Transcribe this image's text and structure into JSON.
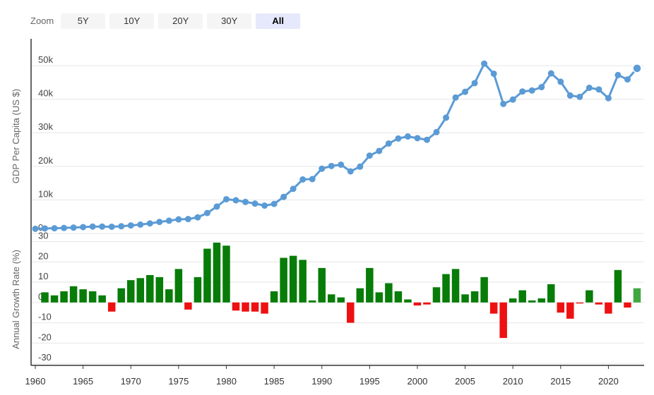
{
  "zoom": {
    "label": "Zoom",
    "buttons": [
      {
        "label": "5Y",
        "active": false
      },
      {
        "label": "10Y",
        "active": false
      },
      {
        "label": "20Y",
        "active": false
      },
      {
        "label": "30Y",
        "active": false
      },
      {
        "label": "All",
        "active": true
      }
    ]
  },
  "chart_data": [
    {
      "type": "line",
      "ylabel": "GDP Per Capita (US $)",
      "ylim": [
        0,
        58000
      ],
      "y_ticks": [
        0,
        10000,
        20000,
        30000,
        40000,
        50000
      ],
      "y_tick_labels": [
        "0",
        "10k",
        "20k",
        "30k",
        "40k",
        "50k"
      ],
      "grid": true,
      "color": "#5b9bd5",
      "x": [
        1960,
        1961,
        1962,
        1963,
        1964,
        1965,
        1966,
        1967,
        1968,
        1969,
        1970,
        1971,
        1972,
        1973,
        1974,
        1975,
        1976,
        1977,
        1978,
        1979,
        1980,
        1981,
        1982,
        1983,
        1984,
        1985,
        1986,
        1987,
        1988,
        1989,
        1990,
        1991,
        1992,
        1993,
        1994,
        1995,
        1996,
        1997,
        1998,
        1999,
        2000,
        2001,
        2002,
        2003,
        2004,
        2005,
        2006,
        2007,
        2008,
        2009,
        2010,
        2011,
        2012,
        2013,
        2014,
        2015,
        2016,
        2017,
        2018,
        2019,
        2020,
        2021,
        2022,
        2023
      ],
      "values": [
        1400,
        1500,
        1550,
        1650,
        1750,
        1900,
        2050,
        2050,
        2000,
        2150,
        2400,
        2650,
        3000,
        3450,
        3800,
        4200,
        4300,
        4800,
        6100,
        8000,
        10200,
        9900,
        9400,
        8900,
        8300,
        8800,
        10900,
        13300,
        16100,
        16200,
        19300,
        20100,
        20500,
        18500,
        19900,
        23200,
        24600,
        26800,
        28300,
        28900,
        28400,
        27900,
        30200,
        34500,
        40500,
        42200,
        44800,
        50600,
        47600,
        38600,
        39900,
        42300,
        42600,
        43600,
        47700,
        45200,
        41100,
        40700,
        43400,
        42900,
        40300,
        47200,
        45900,
        49200
      ]
    },
    {
      "type": "bar",
      "ylabel": "Annual Growth Rate (%)",
      "ylim": [
        -31,
        34
      ],
      "y_ticks": [
        -30,
        -20,
        -10,
        0,
        10,
        20,
        30
      ],
      "y_tick_labels": [
        "-30",
        "-20",
        "-10",
        "0",
        "10",
        "20",
        "30"
      ],
      "grid": true,
      "positive_color": "#087c08",
      "negative_color": "#ee1111",
      "last_color": "#40a840",
      "x": [
        1961,
        1962,
        1963,
        1964,
        1965,
        1966,
        1967,
        1968,
        1969,
        1970,
        1971,
        1972,
        1973,
        1974,
        1975,
        1976,
        1977,
        1978,
        1979,
        1980,
        1981,
        1982,
        1983,
        1984,
        1985,
        1986,
        1987,
        1988,
        1989,
        1990,
        1991,
        1992,
        1993,
        1994,
        1995,
        1996,
        1997,
        1998,
        1999,
        2000,
        2001,
        2002,
        2003,
        2004,
        2005,
        2006,
        2007,
        2008,
        2009,
        2010,
        2011,
        2012,
        2013,
        2014,
        2015,
        2016,
        2017,
        2018,
        2019,
        2020,
        2021,
        2022,
        2023
      ],
      "values": [
        5.0,
        3.5,
        5.5,
        8.0,
        6.5,
        5.5,
        3.5,
        -4.5,
        7.0,
        11.0,
        12.0,
        13.5,
        12.5,
        6.5,
        16.5,
        -3.5,
        12.5,
        26.5,
        29.5,
        28.0,
        -4.0,
        -4.5,
        -4.5,
        -5.5,
        5.5,
        22.0,
        23.0,
        21.0,
        1.0,
        17.0,
        4.0,
        2.5,
        -10.0,
        7.0,
        17.0,
        5.0,
        9.5,
        5.5,
        1.5,
        -1.5,
        -1.0,
        7.5,
        14.0,
        16.5,
        4.0,
        5.5,
        12.5,
        -5.5,
        -17.5,
        2.0,
        6.0,
        1.0,
        2.0,
        9.0,
        -5.0,
        -8.0,
        -0.5,
        6.0,
        -1.0,
        -5.5,
        16.0,
        -2.5,
        7.0
      ]
    }
  ],
  "x_axis": {
    "ticks": [
      1960,
      1965,
      1970,
      1975,
      1980,
      1985,
      1990,
      1995,
      2000,
      2005,
      2010,
      2015,
      2020
    ],
    "tick_labels": [
      "1960",
      "1965",
      "1970",
      "1975",
      "1980",
      "1985",
      "1990",
      "1995",
      "2000",
      "2005",
      "2010",
      "2015",
      "2020"
    ]
  }
}
